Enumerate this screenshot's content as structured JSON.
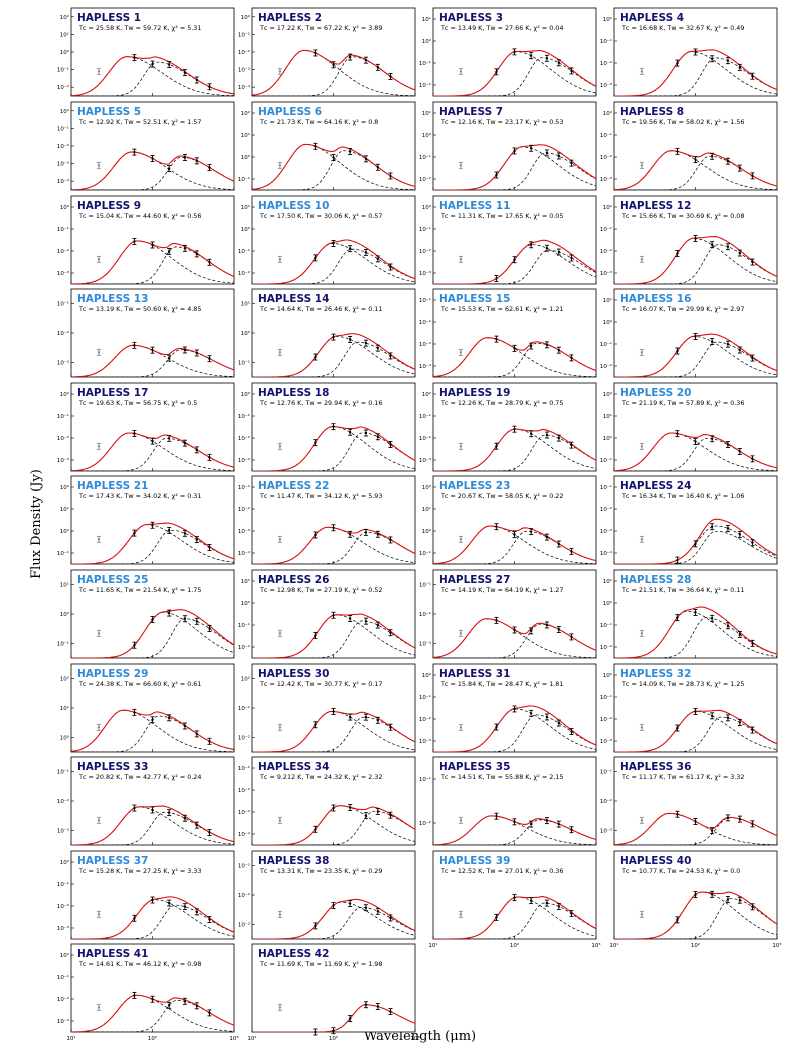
{
  "figure": {
    "ylabel": "Flux Density (Jy)",
    "xlabel": "Wavelength (μm)"
  },
  "colors": {
    "title_dark": "#13136f",
    "title_light": "#2f8bd8",
    "model_total": "#dd1111",
    "model_component": "#000000",
    "data_black": "#000000",
    "data_grey": "#8c8c8c"
  },
  "chart_data": {
    "type": "scatter",
    "layout": "grid of 42 SED panels, 4 columns x 11 rows, log-log axes",
    "x_axis": {
      "scale": "log",
      "range": [
        10,
        1000
      ],
      "ticks": [
        "10¹",
        "10²",
        "10³"
      ]
    },
    "wavelengths_um": [
      22,
      60,
      100,
      160,
      250,
      350,
      500
    ],
    "panels": [
      {
        "id": 1,
        "name": "HAPLESS 1",
        "tc": "25.58",
        "tw": "59.72",
        "chi2": "5.31",
        "title_color": "dark",
        "ytick_labels": [
          "10⁻²",
          "10⁻¹",
          "10⁰",
          "10¹",
          "10²"
        ],
        "peak_level": 0.62
      },
      {
        "id": 2,
        "name": "HAPLESS 2",
        "tc": "17.22",
        "tw": "67.22",
        "chi2": "3.89",
        "title_color": "dark",
        "ytick_labels": [
          "10⁻⁴",
          "10⁻³",
          "10⁻²",
          "10⁻¹",
          "10⁰"
        ],
        "peak_level": 0.72
      },
      {
        "id": 3,
        "name": "HAPLESS 3",
        "tc": "13.49",
        "tw": "27.66",
        "chi2": "0.04",
        "title_color": "dark",
        "ytick_labels": [
          "10⁻²",
          "10⁻¹",
          "10⁰",
          "10¹"
        ],
        "peak_level": 0.7
      },
      {
        "id": 4,
        "name": "HAPLESS 4",
        "tc": "16.68",
        "tw": "32.67",
        "chi2": "0.49",
        "title_color": "dark",
        "ytick_labels": [
          "10⁻³",
          "10⁻²",
          "10⁻¹",
          "10⁰"
        ],
        "peak_level": 0.7
      },
      {
        "id": 5,
        "name": "HAPLESS 5",
        "tc": "12.92",
        "tw": "52.51",
        "chi2": "1.57",
        "title_color": "light",
        "ytick_labels": [
          "10⁻⁴",
          "10⁻³",
          "10⁻²",
          "10⁻¹",
          "10⁰"
        ],
        "peak_level": 0.6
      },
      {
        "id": 6,
        "name": "HAPLESS 6",
        "tc": "21.73",
        "tw": "64.16",
        "chi2": "0.8",
        "title_color": "light",
        "ytick_labels": [
          "10⁻¹",
          "10⁰",
          "10¹",
          "10²"
        ],
        "peak_level": 0.72
      },
      {
        "id": 7,
        "name": "HAPLESS 7",
        "tc": "12.16",
        "tw": "23.17",
        "chi2": "0.53",
        "title_color": "dark",
        "ytick_labels": [
          "10⁻²",
          "10⁻¹",
          "10⁰",
          "10¹"
        ],
        "peak_level": 0.68
      },
      {
        "id": 8,
        "name": "HAPLESS 8",
        "tc": "19.56",
        "tw": "58.02",
        "chi2": "1.56",
        "title_color": "dark",
        "ytick_labels": [
          "10⁻³",
          "10⁻²",
          "10⁻¹",
          "10⁰"
        ],
        "peak_level": 0.62
      },
      {
        "id": 9,
        "name": "HAPLESS 9",
        "tc": "15.04",
        "tw": "44.60",
        "chi2": "0.56",
        "title_color": "dark",
        "ytick_labels": [
          "10⁻³",
          "10⁻²",
          "10⁻¹",
          "10⁰"
        ],
        "peak_level": 0.68
      },
      {
        "id": 10,
        "name": "HAPLESS 10",
        "tc": "17.50",
        "tw": "30.06",
        "chi2": "0.57",
        "title_color": "light",
        "ytick_labels": [
          "10⁻²",
          "10⁻¹",
          "10⁰",
          "10¹"
        ],
        "peak_level": 0.64
      },
      {
        "id": 11,
        "name": "HAPLESS 11",
        "tc": "11.31",
        "tw": "17.65",
        "chi2": "0.05",
        "title_color": "light",
        "ytick_labels": [
          "10⁻³",
          "10⁻²",
          "10⁻¹",
          "10⁰"
        ],
        "peak_level": 0.62
      },
      {
        "id": 12,
        "name": "HAPLESS 12",
        "tc": "15.66",
        "tw": "30.69",
        "chi2": "0.08",
        "title_color": "dark",
        "ytick_labels": [
          "10⁻³",
          "10⁻²",
          "10⁻¹",
          "10⁰"
        ],
        "peak_level": 0.72
      },
      {
        "id": 13,
        "name": "HAPLESS 13",
        "tc": "13.19",
        "tw": "50.60",
        "chi2": "4.85",
        "title_color": "light",
        "ytick_labels": [
          "10⁻³",
          "10⁻²",
          "10⁻¹"
        ],
        "peak_level": 0.5
      },
      {
        "id": 14,
        "name": "HAPLESS 14",
        "tc": "14.64",
        "tw": "26.46",
        "chi2": "0.11",
        "title_color": "dark",
        "ytick_labels": [
          "10⁻¹",
          "10⁰",
          "10¹"
        ],
        "peak_level": 0.64
      },
      {
        "id": 15,
        "name": "HAPLESS 15",
        "tc": "15.53",
        "tw": "62.61",
        "chi2": "1.21",
        "title_color": "light",
        "ytick_labels": [
          "10⁻⁴",
          "10⁻³",
          "10⁻²",
          "10⁻¹"
        ],
        "peak_level": 0.62
      },
      {
        "id": 16,
        "name": "HAPLESS 16",
        "tc": "16.07",
        "tw": "29.99",
        "chi2": "2.97",
        "title_color": "light",
        "ytick_labels": [
          "10⁻²",
          "10⁻¹",
          "10⁰",
          "10¹"
        ],
        "peak_level": 0.64
      },
      {
        "id": 17,
        "name": "HAPLESS 17",
        "tc": "19.63",
        "tw": "56.75",
        "chi2": "0.5",
        "title_color": "dark",
        "ytick_labels": [
          "10⁻³",
          "10⁻²",
          "10⁻¹",
          "10⁰"
        ],
        "peak_level": 0.6
      },
      {
        "id": 18,
        "name": "HAPLESS 18",
        "tc": "12.76",
        "tw": "29.94",
        "chi2": "0.16",
        "title_color": "dark",
        "ytick_labels": [
          "10⁻³",
          "10⁻²",
          "10⁻¹",
          "10⁰"
        ],
        "peak_level": 0.7
      },
      {
        "id": 19,
        "name": "HAPLESS 19",
        "tc": "12.26",
        "tw": "28.79",
        "chi2": "0.75",
        "title_color": "dark",
        "ytick_labels": [
          "10⁻³",
          "10⁻²",
          "10⁻¹",
          "10⁰"
        ],
        "peak_level": 0.66
      },
      {
        "id": 20,
        "name": "HAPLESS 20",
        "tc": "21.19",
        "tw": "57.89",
        "chi2": "0.36",
        "title_color": "light",
        "ytick_labels": [
          "10⁻¹",
          "10⁰",
          "10¹",
          "10²"
        ],
        "peak_level": 0.6
      },
      {
        "id": 21,
        "name": "HAPLESS 21",
        "tc": "17.43",
        "tw": "34.02",
        "chi2": "0.31",
        "title_color": "light",
        "ytick_labels": [
          "10⁻¹",
          "10⁰",
          "10¹",
          "10²"
        ],
        "peak_level": 0.62
      },
      {
        "id": 22,
        "name": "HAPLESS 22",
        "tc": "11.47",
        "tw": "34.12",
        "chi2": "5.93",
        "title_color": "light",
        "ytick_labels": [
          "10⁻⁴",
          "10⁻³",
          "10⁻²",
          "10⁻¹"
        ],
        "peak_level": 0.58
      },
      {
        "id": 23,
        "name": "HAPLESS 23",
        "tc": "20.67",
        "tw": "58.05",
        "chi2": "0.22",
        "title_color": "light",
        "ytick_labels": [
          "10⁻¹",
          "10⁰",
          "10¹",
          "10²"
        ],
        "peak_level": 0.6
      },
      {
        "id": 24,
        "name": "HAPLESS 24",
        "tc": "16.34",
        "tw": "16.40",
        "chi2": "1.06",
        "title_color": "dark",
        "ytick_labels": [
          "10⁻⁴",
          "10⁻³",
          "10⁻²",
          "10⁻¹"
        ],
        "peak_level": 0.6
      },
      {
        "id": 25,
        "name": "HAPLESS 25",
        "tc": "11.65",
        "tw": "21.54",
        "chi2": "1.75",
        "title_color": "light",
        "ytick_labels": [
          "10⁻¹",
          "10⁰",
          "10¹"
        ],
        "peak_level": 0.72
      },
      {
        "id": 26,
        "name": "HAPLESS 26",
        "tc": "12.98",
        "tw": "27.19",
        "chi2": "0.52",
        "title_color": "dark",
        "ytick_labels": [
          "10⁻²",
          "10⁻¹",
          "10⁰",
          "10¹"
        ],
        "peak_level": 0.68
      },
      {
        "id": 27,
        "name": "HAPLESS 27",
        "tc": "14.19",
        "tw": "64.19",
        "chi2": "1.27",
        "title_color": "dark",
        "ytick_labels": [
          "10⁻³",
          "10⁻²",
          "10⁻¹"
        ],
        "peak_level": 0.62
      },
      {
        "id": 28,
        "name": "HAPLESS 28",
        "tc": "21.51",
        "tw": "36.64",
        "chi2": "0.11",
        "title_color": "light",
        "ytick_labels": [
          "10⁻²",
          "10⁻¹",
          "10⁰",
          "10¹"
        ],
        "peak_level": 0.74
      },
      {
        "id": 29,
        "name": "HAPLESS 29",
        "tc": "24.38",
        "tw": "66.60",
        "chi2": "0.61",
        "title_color": "light",
        "ytick_labels": [
          "10⁰",
          "10¹",
          "10²"
        ],
        "peak_level": 0.66
      },
      {
        "id": 30,
        "name": "HAPLESS 30",
        "tc": "12.42",
        "tw": "30.77",
        "chi2": "0.17",
        "title_color": "dark",
        "ytick_labels": [
          "10⁻²",
          "10⁻¹",
          "10⁰"
        ],
        "peak_level": 0.64
      },
      {
        "id": 31,
        "name": "HAPLESS 31",
        "tc": "15.84",
        "tw": "28.47",
        "chi2": "1.81",
        "title_color": "dark",
        "ytick_labels": [
          "10⁻³",
          "10⁻²",
          "10⁻¹",
          "10⁰"
        ],
        "peak_level": 0.68
      },
      {
        "id": 32,
        "name": "HAPLESS 32",
        "tc": "14.09",
        "tw": "28.73",
        "chi2": "1.25",
        "title_color": "light",
        "ytick_labels": [
          "10⁻³",
          "10⁻²",
          "10⁻¹",
          "10⁰"
        ],
        "peak_level": 0.64
      },
      {
        "id": 33,
        "name": "HAPLESS 33",
        "tc": "20.82",
        "tw": "42.77",
        "chi2": "0.24",
        "title_color": "dark",
        "ytick_labels": [
          "10⁻³",
          "10⁻²",
          "10⁻¹"
        ],
        "peak_level": 0.6
      },
      {
        "id": 34,
        "name": "HAPLESS 34",
        "tc": "9.212",
        "tw": "24.32",
        "chi2": "2.32",
        "title_color": "dark",
        "ytick_labels": [
          "10⁻⁴",
          "10⁻³",
          "10⁻²",
          "10⁻¹"
        ],
        "peak_level": 0.62
      },
      {
        "id": 35,
        "name": "HAPLESS 35",
        "tc": "14.51",
        "tw": "55.88",
        "chi2": "2.15",
        "title_color": "dark",
        "ytick_labels": [
          "10⁻²",
          "10⁻¹"
        ],
        "peak_level": 0.46
      },
      {
        "id": 36,
        "name": "HAPLESS 36",
        "tc": "11.17",
        "tw": "61.17",
        "chi2": "3.32",
        "title_color": "dark",
        "ytick_labels": [
          "10⁻³",
          "10⁻²",
          "10⁻¹"
        ],
        "peak_level": 0.5
      },
      {
        "id": 37,
        "name": "HAPLESS 37",
        "tc": "15.28",
        "tw": "27.25",
        "chi2": "3.33",
        "title_color": "light",
        "ytick_labels": [
          "10⁻³",
          "10⁻²",
          "10⁻¹",
          "10⁰"
        ],
        "peak_level": 0.62
      },
      {
        "id": 38,
        "name": "HAPLESS 38",
        "tc": "13.31",
        "tw": "23.35",
        "chi2": "0.29",
        "title_color": "dark",
        "ytick_labels": [
          "10⁻³",
          "10⁻²",
          "10⁻¹"
        ],
        "peak_level": 0.58
      },
      {
        "id": 39,
        "name": "HAPLESS 39",
        "tc": "12.52",
        "tw": "27.01",
        "chi2": "0.36",
        "title_color": "light",
        "ytick_labels": [],
        "peak_level": 0.66
      },
      {
        "id": 40,
        "name": "HAPLESS 40",
        "tc": "10.77",
        "tw": "24.53",
        "chi2": "0.0",
        "title_color": "dark",
        "ytick_labels": [],
        "peak_level": 0.74
      },
      {
        "id": 41,
        "name": "HAPLESS 41",
        "tc": "14.61",
        "tw": "46.12",
        "chi2": "0.98",
        "title_color": "dark",
        "ytick_labels": [
          "10⁻³",
          "10⁻²",
          "10⁻¹",
          "10⁰"
        ],
        "peak_level": 0.58
      },
      {
        "id": 42,
        "name": "HAPLESS 42",
        "tc": "11.69",
        "tw": "11.69",
        "chi2": "1.98",
        "title_color": "dark",
        "ytick_labels": [],
        "peak_level": 0.5
      }
    ]
  }
}
